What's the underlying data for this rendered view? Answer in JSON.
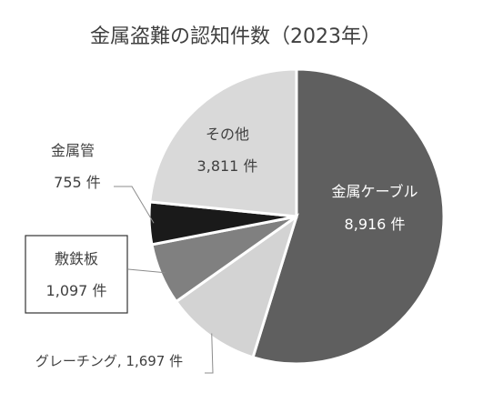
{
  "chart_data": {
    "type": "pie",
    "title": "金属盗難の認知件数（2023年）",
    "unit": "件",
    "slices": [
      {
        "label": "金属ケーブル",
        "value": 8916,
        "value_text": "8,916 件",
        "color": "#5f5f5f"
      },
      {
        "label": "グレーチング",
        "value": 1697,
        "value_text": "1,697 件",
        "color": "#d3d3d3",
        "inline_text": "グレーチング, 1,697 件"
      },
      {
        "label": "敷鉄板",
        "value": 1097,
        "value_text": "1,097 件",
        "color": "#808080"
      },
      {
        "label": "金属管",
        "value": 755,
        "value_text": "755 件",
        "color": "#1a1a1a"
      },
      {
        "label": "その他",
        "value": 3811,
        "value_text": "3,811 件",
        "color": "#d9d9d9"
      }
    ],
    "start_angle": "12 o'clock",
    "direction": "clockwise",
    "legend": "none"
  }
}
